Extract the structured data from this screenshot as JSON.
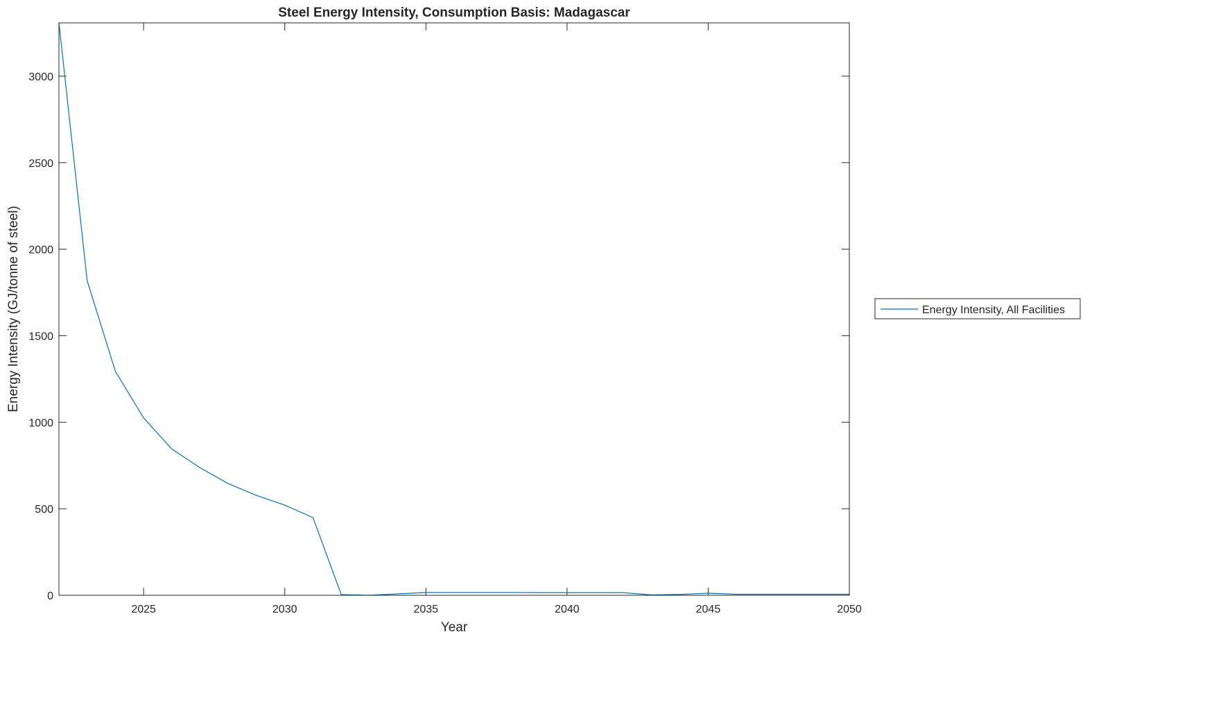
{
  "chart_data": {
    "type": "line",
    "title": "Steel Energy Intensity, Consumption Basis: Madagascar",
    "xlabel": "Year",
    "ylabel": "Energy Intensity (GJ/tonne of steel)",
    "xlim": [
      2022,
      2050
    ],
    "ylim": [
      0,
      3308
    ],
    "xticks": [
      2025,
      2030,
      2035,
      2040,
      2045,
      2050
    ],
    "yticks": [
      0,
      500,
      1000,
      1500,
      2000,
      2500,
      3000
    ],
    "grid": false,
    "legend_placement": "outside-right",
    "series": [
      {
        "name": "Energy Intensity, All Facilities",
        "color": "#0072BD",
        "x": [
          2022,
          2023,
          2024,
          2025,
          2026,
          2027,
          2028,
          2029,
          2030,
          2031,
          2032,
          2033,
          2034,
          2035,
          2036,
          2037,
          2038,
          2039,
          2040,
          2041,
          2042,
          2043,
          2044,
          2045,
          2046,
          2047,
          2048,
          2049,
          2050
        ],
        "values": [
          3308,
          1818,
          1294,
          1025,
          845,
          737,
          645,
          577,
          521,
          449,
          4,
          0,
          8,
          16,
          16,
          16,
          16,
          15,
          15,
          15,
          15,
          2,
          5,
          12,
          6,
          6,
          6,
          6,
          6
        ]
      }
    ]
  }
}
